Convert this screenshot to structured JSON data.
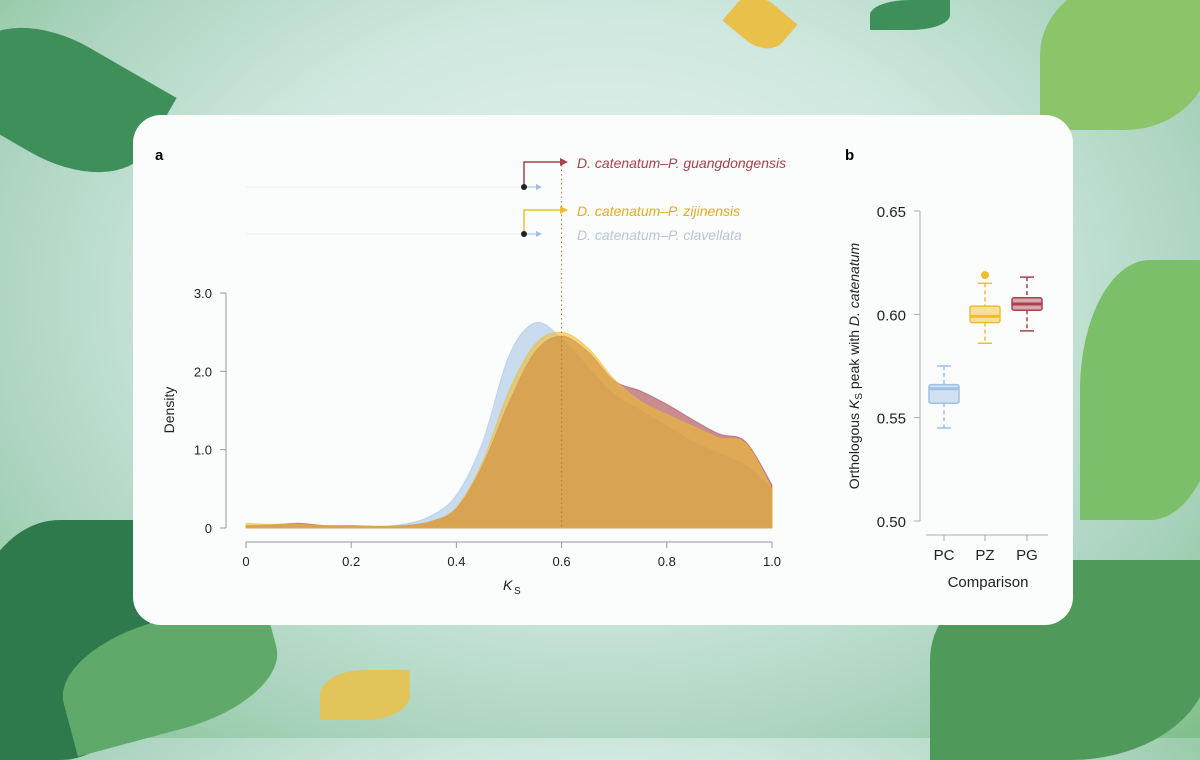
{
  "colors": {
    "PC": "#9fc0e4",
    "PZ": "#f0bd2e",
    "PG": "#a8414b",
    "blend": "#c98e62"
  },
  "chart_data": [
    {
      "panel": "a",
      "type": "area",
      "xlabel": "K",
      "xlabel_sub": "S",
      "ylabel": "Density",
      "xlim": [
        0,
        1.0
      ],
      "ylim": [
        0,
        3.0
      ],
      "xticks": [
        "0",
        "0.2",
        "0.4",
        "0.6",
        "0.8",
        "1.0"
      ],
      "yticks": [
        "0",
        "1.0",
        "2.0",
        "3.0"
      ],
      "x": [
        0,
        0.05,
        0.1,
        0.15,
        0.2,
        0.25,
        0.3,
        0.35,
        0.4,
        0.45,
        0.5,
        0.55,
        0.6,
        0.65,
        0.7,
        0.75,
        0.8,
        0.85,
        0.9,
        0.95,
        1.0
      ],
      "series": [
        {
          "name": "D. catenatum–P. clavellata",
          "key": "PC",
          "values": [
            0.02,
            0.03,
            0.05,
            0.03,
            0.03,
            0.02,
            0.05,
            0.15,
            0.42,
            1.1,
            2.2,
            2.62,
            2.42,
            2.05,
            1.7,
            1.5,
            1.3,
            1.1,
            0.95,
            0.8,
            0.5
          ]
        },
        {
          "name": "D. catenatum–P. guangdongensis",
          "key": "PG",
          "values": [
            0.03,
            0.04,
            0.06,
            0.03,
            0.03,
            0.02,
            0.03,
            0.08,
            0.25,
            0.8,
            1.6,
            2.25,
            2.45,
            2.25,
            1.88,
            1.75,
            1.58,
            1.38,
            1.2,
            1.1,
            0.55
          ]
        },
        {
          "name": "D. catenatum–P. zijinensis",
          "key": "PZ",
          "values": [
            0.06,
            0.05,
            0.05,
            0.03,
            0.03,
            0.02,
            0.03,
            0.08,
            0.26,
            0.85,
            1.75,
            2.35,
            2.5,
            2.3,
            1.9,
            1.62,
            1.45,
            1.3,
            1.15,
            1.08,
            0.5
          ]
        }
      ],
      "reference_line_x": 0.6
    },
    {
      "panel": "b",
      "type": "box",
      "xlabel": "Comparison",
      "ylabel_pre": "Orthologous ",
      "ylabel_k": "K",
      "ylabel_sub": "S",
      "ylabel_post": " peak with ",
      "ylabel_italic": "D. catenatum",
      "ylim": [
        0.5,
        0.65
      ],
      "yticks": [
        "0.50",
        "0.55",
        "0.60",
        "0.65"
      ],
      "categories": [
        "PC",
        "PZ",
        "PG"
      ],
      "boxes": [
        {
          "key": "PC",
          "min": 0.545,
          "q1": 0.557,
          "median": 0.564,
          "q3": 0.566,
          "max": 0.575,
          "outliers": []
        },
        {
          "key": "PZ",
          "min": 0.586,
          "q1": 0.596,
          "median": 0.599,
          "q3": 0.604,
          "max": 0.615,
          "outliers": [
            0.619
          ]
        },
        {
          "key": "PG",
          "min": 0.592,
          "q1": 0.602,
          "median": 0.605,
          "q3": 0.608,
          "max": 0.618,
          "outliers": []
        }
      ]
    }
  ]
}
